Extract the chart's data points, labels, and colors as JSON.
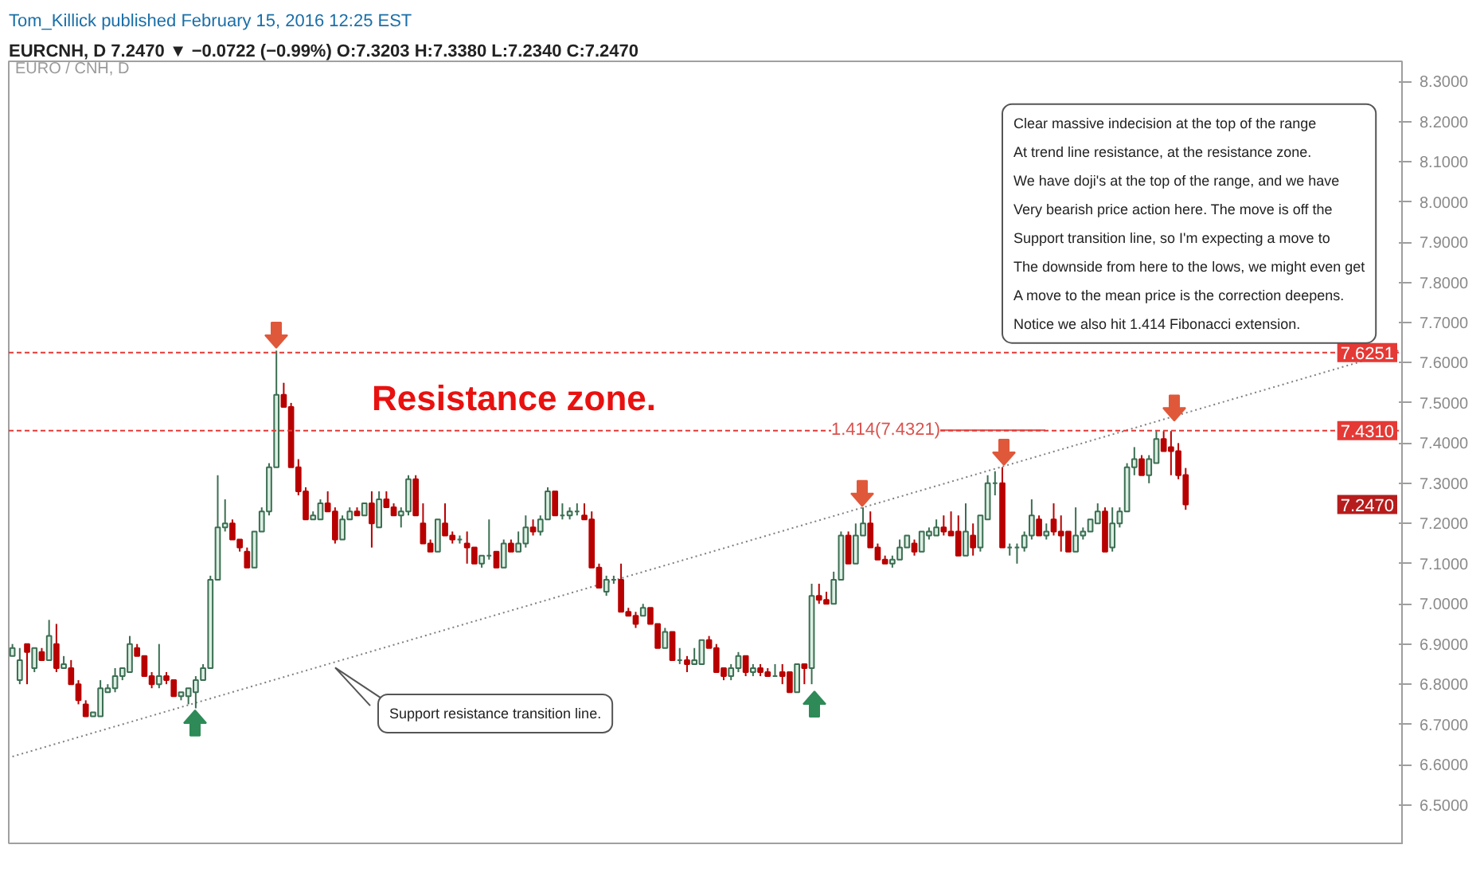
{
  "chart_data": {
    "type": "candlestick",
    "title": "Tom_Killick published February 15, 2016 12:25 EST",
    "subtitle": "EURCNH, D  7.2470 ▼ −0.0722 (−0.99%)  O:7.3203  H:7.3380  L:7.2340  C:7.2470",
    "categories": [
      null,
      null,
      null,
      null,
      null,
      null,
      null,
      null,
      null,
      null,
      null,
      null,
      null,
      null,
      null,
      null,
      null,
      null,
      null,
      null,
      null,
      null,
      null,
      null,
      null,
      null,
      null,
      null,
      null,
      null,
      null,
      null,
      null,
      null,
      null,
      null,
      null,
      null,
      null,
      null,
      null,
      null,
      null,
      null,
      null,
      null,
      null,
      null,
      null,
      null,
      null,
      null,
      null,
      null,
      null,
      null,
      null,
      null,
      null,
      null,
      null,
      null,
      null,
      null,
      null,
      null,
      null,
      null,
      null,
      null,
      null,
      null,
      null,
      null,
      null,
      null,
      null,
      null,
      null,
      null,
      null,
      null,
      null,
      null,
      null,
      null,
      null,
      null,
      null,
      null,
      null,
      null,
      null,
      null,
      null,
      null,
      null,
      null,
      null,
      null,
      null,
      null,
      null,
      null,
      null,
      null,
      null,
      null,
      null,
      null,
      null,
      null,
      null,
      null,
      null,
      null,
      null,
      null,
      null,
      null,
      null,
      null,
      null,
      null,
      null,
      null,
      null,
      null,
      null,
      null,
      null,
      null,
      null,
      null,
      null,
      null,
      null,
      null,
      null,
      null,
      null,
      null,
      null,
      null,
      null,
      null,
      null,
      null,
      null,
      null,
      null,
      null,
      null,
      null,
      null,
      null,
      null,
      null,
      null,
      null,
      null,
      null,
      null,
      null,
      null,
      null,
      null,
      null,
      null,
      null,
      null,
      null,
      null,
      null,
      null,
      null,
      null,
      null,
      null,
      null,
      null,
      null,
      null,
      null,
      null,
      null,
      null,
      null,
      null,
      null
    ],
    "ohlc": [
      [
        6.87,
        6.9,
        6.87,
        6.89
      ],
      [
        6.81,
        6.89,
        6.8,
        6.86
      ],
      [
        6.9,
        6.9,
        6.8,
        6.88
      ],
      [
        6.84,
        6.89,
        6.83,
        6.89
      ],
      [
        6.88,
        6.89,
        6.86,
        6.86
      ],
      [
        6.86,
        6.96,
        6.86,
        6.92
      ],
      [
        6.9,
        6.95,
        6.83,
        6.84
      ],
      [
        6.84,
        6.87,
        6.84,
        6.85
      ],
      [
        6.84,
        6.86,
        6.8,
        6.8
      ],
      [
        6.8,
        6.81,
        6.75,
        6.76
      ],
      [
        6.75,
        6.76,
        6.72,
        6.72
      ],
      [
        6.72,
        6.73,
        6.72,
        6.73
      ],
      [
        6.72,
        6.81,
        6.72,
        6.79
      ],
      [
        6.78,
        6.8,
        6.78,
        6.79
      ],
      [
        6.79,
        6.84,
        6.78,
        6.82
      ],
      [
        6.82,
        6.84,
        6.81,
        6.84
      ],
      [
        6.83,
        6.92,
        6.83,
        6.9
      ],
      [
        6.89,
        6.9,
        6.87,
        6.87
      ],
      [
        6.87,
        6.87,
        6.82,
        6.82
      ],
      [
        6.82,
        6.83,
        6.79,
        6.8
      ],
      [
        6.8,
        6.9,
        6.79,
        6.82
      ],
      [
        6.82,
        6.83,
        6.8,
        6.81
      ],
      [
        6.81,
        6.81,
        6.77,
        6.77
      ],
      [
        6.77,
        6.78,
        6.76,
        6.78
      ],
      [
        6.77,
        6.79,
        6.75,
        6.79
      ],
      [
        6.78,
        6.82,
        6.74,
        6.81
      ],
      [
        6.81,
        6.85,
        6.81,
        6.84
      ],
      [
        6.84,
        7.07,
        6.84,
        7.06
      ],
      [
        7.06,
        7.32,
        7.06,
        7.19
      ],
      [
        7.19,
        7.26,
        7.18,
        7.2
      ],
      [
        7.2,
        7.21,
        7.16,
        7.16
      ],
      [
        7.16,
        7.16,
        7.13,
        7.14
      ],
      [
        7.13,
        7.14,
        7.09,
        7.09
      ],
      [
        7.09,
        7.18,
        7.09,
        7.18
      ],
      [
        7.18,
        7.24,
        7.18,
        7.23
      ],
      [
        7.23,
        7.35,
        7.22,
        7.34
      ],
      [
        7.34,
        7.63,
        7.34,
        7.52
      ],
      [
        7.52,
        7.55,
        7.49,
        7.49
      ],
      [
        7.49,
        7.5,
        7.34,
        7.34
      ],
      [
        7.34,
        7.36,
        7.27,
        7.28
      ],
      [
        7.28,
        7.29,
        7.21,
        7.21
      ],
      [
        7.21,
        7.23,
        7.21,
        7.22
      ],
      [
        7.21,
        7.26,
        7.21,
        7.25
      ],
      [
        7.25,
        7.28,
        7.23,
        7.23
      ],
      [
        7.23,
        7.24,
        7.15,
        7.16
      ],
      [
        7.16,
        7.22,
        7.16,
        7.21
      ],
      [
        7.21,
        7.24,
        7.21,
        7.23
      ],
      [
        7.23,
        7.24,
        7.22,
        7.22
      ],
      [
        7.22,
        7.25,
        7.22,
        7.25
      ],
      [
        7.25,
        7.28,
        7.14,
        7.2
      ],
      [
        7.19,
        7.28,
        7.19,
        7.26
      ],
      [
        7.26,
        7.28,
        7.24,
        7.24
      ],
      [
        7.24,
        7.25,
        7.22,
        7.22
      ],
      [
        7.22,
        7.24,
        7.19,
        7.23
      ],
      [
        7.23,
        7.32,
        7.22,
        7.31
      ],
      [
        7.31,
        7.32,
        7.22,
        7.22
      ],
      [
        7.2,
        7.25,
        7.15,
        7.15
      ],
      [
        7.15,
        7.16,
        7.13,
        7.13
      ],
      [
        7.13,
        7.21,
        7.13,
        7.21
      ],
      [
        7.2,
        7.25,
        7.17,
        7.17
      ],
      [
        7.17,
        7.18,
        7.15,
        7.16
      ],
      [
        7.16,
        7.17,
        7.15,
        7.16
      ],
      [
        7.15,
        7.18,
        7.1,
        7.14
      ],
      [
        7.14,
        7.14,
        7.1,
        7.1
      ],
      [
        7.1,
        7.12,
        7.09,
        7.12
      ],
      [
        7.12,
        7.21,
        7.11,
        7.12
      ],
      [
        7.13,
        7.13,
        7.09,
        7.09
      ],
      [
        7.09,
        7.16,
        7.09,
        7.15
      ],
      [
        7.15,
        7.16,
        7.13,
        7.13
      ],
      [
        7.13,
        7.18,
        7.13,
        7.15
      ],
      [
        7.15,
        7.22,
        7.14,
        7.19
      ],
      [
        7.19,
        7.21,
        7.17,
        7.18
      ],
      [
        7.18,
        7.22,
        7.17,
        7.21
      ],
      [
        7.21,
        7.29,
        7.21,
        7.28
      ],
      [
        7.28,
        7.28,
        7.22,
        7.22
      ],
      [
        7.22,
        7.25,
        7.21,
        7.22
      ],
      [
        7.22,
        7.24,
        7.21,
        7.23
      ],
      [
        7.23,
        7.25,
        7.22,
        7.23
      ],
      [
        7.22,
        7.25,
        7.21,
        7.21
      ],
      [
        7.21,
        7.23,
        7.09,
        7.09
      ],
      [
        7.09,
        7.1,
        7.04,
        7.04
      ],
      [
        7.03,
        7.07,
        7.02,
        7.06
      ],
      [
        7.06,
        7.07,
        7.05,
        7.06
      ],
      [
        7.06,
        7.1,
        6.98,
        6.98
      ],
      [
        6.98,
        6.99,
        6.97,
        6.97
      ],
      [
        6.97,
        6.98,
        6.94,
        6.95
      ],
      [
        6.97,
        7.0,
        6.97,
        6.99
      ],
      [
        6.99,
        6.99,
        6.95,
        6.95
      ],
      [
        6.95,
        6.95,
        6.89,
        6.89
      ],
      [
        6.89,
        6.94,
        6.89,
        6.93
      ],
      [
        6.93,
        6.93,
        6.86,
        6.86
      ],
      [
        6.86,
        6.89,
        6.85,
        6.86
      ],
      [
        6.86,
        6.87,
        6.83,
        6.85
      ],
      [
        6.85,
        6.89,
        6.85,
        6.86
      ],
      [
        6.85,
        6.91,
        6.85,
        6.91
      ],
      [
        6.91,
        6.92,
        6.89,
        6.89
      ],
      [
        6.89,
        6.9,
        6.83,
        6.83
      ],
      [
        6.84,
        6.84,
        6.81,
        6.82
      ],
      [
        6.82,
        6.85,
        6.81,
        6.84
      ],
      [
        6.84,
        6.88,
        6.83,
        6.87
      ],
      [
        6.87,
        6.87,
        6.82,
        6.83
      ],
      [
        6.83,
        6.85,
        6.82,
        6.84
      ],
      [
        6.84,
        6.85,
        6.82,
        6.83
      ],
      [
        6.83,
        6.84,
        6.82,
        6.82
      ],
      [
        6.82,
        6.85,
        6.82,
        6.82
      ],
      [
        6.83,
        6.85,
        6.8,
        6.82
      ],
      [
        6.83,
        6.83,
        6.78,
        6.78
      ],
      [
        6.78,
        6.85,
        6.78,
        6.85
      ],
      [
        6.85,
        6.85,
        6.8,
        6.84
      ],
      [
        6.84,
        7.05,
        6.8,
        7.02
      ],
      [
        7.02,
        7.05,
        7.0,
        7.01
      ],
      [
        7.01,
        7.03,
        7.0,
        7.0
      ],
      [
        7.0,
        7.08,
        7.0,
        7.06
      ],
      [
        7.06,
        7.18,
        7.06,
        7.17
      ],
      [
        7.17,
        7.18,
        7.1,
        7.1
      ],
      [
        7.1,
        7.2,
        7.1,
        7.17
      ],
      [
        7.17,
        7.24,
        7.17,
        7.2
      ],
      [
        7.2,
        7.23,
        7.14,
        7.14
      ],
      [
        7.14,
        7.15,
        7.11,
        7.11
      ],
      [
        7.11,
        7.12,
        7.1,
        7.1
      ],
      [
        7.1,
        7.12,
        7.09,
        7.11
      ],
      [
        7.11,
        7.16,
        7.11,
        7.14
      ],
      [
        7.14,
        7.17,
        7.14,
        7.17
      ],
      [
        7.15,
        7.16,
        7.12,
        7.13
      ],
      [
        7.13,
        7.18,
        7.13,
        7.18
      ],
      [
        7.17,
        7.19,
        7.16,
        7.18
      ],
      [
        7.17,
        7.21,
        7.17,
        7.19
      ],
      [
        7.19,
        7.22,
        7.17,
        7.18
      ],
      [
        7.18,
        7.23,
        7.17,
        7.17
      ],
      [
        7.18,
        7.22,
        7.12,
        7.12
      ],
      [
        7.12,
        7.25,
        7.12,
        7.18
      ],
      [
        7.17,
        7.2,
        7.12,
        7.14
      ],
      [
        7.14,
        7.22,
        7.13,
        7.22
      ],
      [
        7.21,
        7.32,
        7.21,
        7.3
      ],
      [
        7.3,
        7.33,
        7.27,
        7.3
      ],
      [
        7.3,
        7.34,
        7.14,
        7.14
      ],
      [
        7.14,
        7.15,
        7.12,
        7.14
      ],
      [
        7.14,
        7.15,
        7.1,
        7.14
      ],
      [
        7.14,
        7.18,
        7.13,
        7.17
      ],
      [
        7.17,
        7.26,
        7.16,
        7.22
      ],
      [
        7.21,
        7.22,
        7.17,
        7.17
      ],
      [
        7.17,
        7.2,
        7.16,
        7.18
      ],
      [
        7.21,
        7.25,
        7.17,
        7.18
      ],
      [
        7.18,
        7.22,
        7.13,
        7.17
      ],
      [
        7.18,
        7.18,
        7.13,
        7.13
      ],
      [
        7.13,
        7.24,
        7.13,
        7.17
      ],
      [
        7.17,
        7.19,
        7.16,
        7.18
      ],
      [
        7.18,
        7.21,
        7.18,
        7.21
      ],
      [
        7.2,
        7.25,
        7.2,
        7.23
      ],
      [
        7.23,
        7.24,
        7.13,
        7.13
      ],
      [
        7.14,
        7.24,
        7.13,
        7.2
      ],
      [
        7.2,
        7.24,
        7.19,
        7.23
      ],
      [
        7.23,
        7.35,
        7.23,
        7.34
      ],
      [
        7.34,
        7.39,
        7.32,
        7.36
      ],
      [
        7.36,
        7.37,
        7.32,
        7.32
      ],
      [
        7.32,
        7.37,
        7.3,
        7.36
      ],
      [
        7.35,
        7.43,
        7.35,
        7.41
      ],
      [
        7.41,
        7.43,
        7.38,
        7.38
      ],
      [
        7.39,
        7.43,
        7.32,
        7.38
      ],
      [
        7.38,
        7.4,
        7.31,
        7.32
      ],
      [
        7.3203,
        7.338,
        7.234,
        7.247
      ],
      null,
      null,
      null,
      null,
      null,
      null,
      null,
      null,
      null,
      null,
      null,
      null,
      null,
      null,
      null,
      null,
      null,
      null,
      null,
      null,
      null,
      null,
      null,
      null,
      null,
      null,
      null,
      null,
      null
    ],
    "series": [
      {
        "type": "line",
        "values": [
          6.62,
          null,
          null,
          null,
          null,
          null,
          null,
          null,
          null,
          null,
          null,
          null,
          null,
          null,
          null,
          null,
          null,
          null,
          null,
          null,
          null,
          null,
          null,
          null,
          null,
          null,
          null,
          null,
          null,
          null,
          null,
          null,
          null,
          null,
          null,
          null,
          null,
          null,
          null,
          null,
          null,
          null,
          null,
          null,
          null,
          null,
          null,
          null,
          null,
          null,
          null,
          null,
          null,
          null,
          null,
          null,
          null,
          null,
          null,
          null,
          null,
          null,
          null,
          null,
          null,
          null,
          null,
          null,
          null,
          null,
          null,
          null,
          null,
          null,
          null,
          null,
          null,
          null,
          null,
          null,
          null,
          null,
          null,
          null,
          null,
          null,
          null,
          null,
          null,
          null,
          null,
          null,
          null,
          null,
          null,
          null,
          null,
          null,
          null,
          null,
          null,
          null,
          null,
          null,
          null,
          null,
          null,
          null,
          null,
          null,
          null,
          null,
          null,
          null,
          null,
          null,
          null,
          null,
          null,
          null,
          null,
          null,
          null,
          null,
          null,
          null,
          null,
          null,
          null,
          null,
          null,
          null,
          null,
          null,
          null,
          null,
          null,
          null,
          null,
          null,
          null,
          null,
          null,
          null,
          null,
          null,
          null,
          null,
          null,
          null,
          null,
          null,
          null,
          null,
          null,
          null,
          null,
          null,
          null,
          null,
          null,
          null,
          null,
          null,
          null,
          null,
          null,
          null,
          null,
          null,
          null,
          null,
          null,
          null,
          null,
          null,
          null,
          null,
          null,
          null,
          null,
          null,
          null,
          null,
          null,
          null,
          null,
          null,
          null,
          7.63
        ],
        "color": "#7f7f7f",
        "line_style": "dotted"
      }
    ],
    "ylim": [
      6.4,
      8.35
    ],
    "yticks": [
      {
        "value": 6.5,
        "label": "6.5000"
      },
      {
        "value": 6.6,
        "label": "6.6000"
      },
      {
        "value": 6.7,
        "label": "6.7000"
      },
      {
        "value": 6.8,
        "label": "6.8000"
      },
      {
        "value": 6.9,
        "label": "6.9000"
      },
      {
        "value": 7.0,
        "label": "7.0000"
      },
      {
        "value": 7.1,
        "label": "7.1000"
      },
      {
        "value": 7.2,
        "label": "7.2000"
      },
      {
        "value": 7.3,
        "label": "7.3000"
      },
      {
        "value": 7.4,
        "label": "7.4000"
      },
      {
        "value": 7.5,
        "label": "7.5000"
      },
      {
        "value": 7.6,
        "label": "7.6000"
      },
      {
        "value": 7.7,
        "label": "7.7000"
      },
      {
        "value": 7.8,
        "label": "7.8000"
      },
      {
        "value": 7.9,
        "label": "7.9000"
      },
      {
        "value": 8.0,
        "label": "8.0000"
      },
      {
        "value": 8.1,
        "label": "8.1000"
      },
      {
        "value": 8.2,
        "label": "8.2000"
      },
      {
        "value": 8.3,
        "label": "8.3000"
      }
    ],
    "ref_lines": [
      {
        "axis": "y",
        "value": 7.6251,
        "label": "7.6251",
        "color": "#e53935",
        "line_style": "dashed"
      },
      {
        "axis": "y",
        "value": 7.431,
        "label": "7.4310",
        "color": "#e53935",
        "line_style": "dashed"
      }
    ],
    "annotations": [
      "EURO / CNH, D",
      "Resistance zone.",
      "Support resistance transition line.",
      "Clear massive indecision at the top of the range\nAt trend line resistance, at the resistance zone.\nWe have doji's at the top of the range, and we have\nVery bearish price action here. The move is off the\nSupport transition line, so I'm expecting a move to\nThe downside from here to the lows, we might even get\nA move to the mean price is the correction deepens.\nNotice we also hit 1.414 Fibonacci extension.",
      {
        "text": "1.414(7.4321)",
        "y": 7.4321
      },
      {
        "text": "7.2470",
        "y": 7.247
      }
    ],
    "grid": false
  }
}
